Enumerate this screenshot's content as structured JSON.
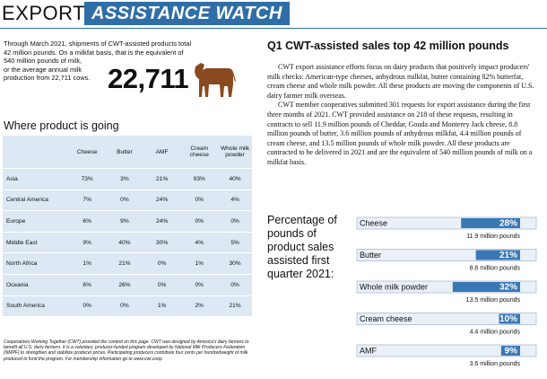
{
  "header": {
    "part1": "EXPORT",
    "part2": "ASSISTANCE WATCH"
  },
  "intro": {
    "lines": [
      "Through March 2021, shipments of CWT-assisted products total",
      "42 million pounds. On a milkfat basis, that is the equivalent of",
      "540 million pounds of milk,",
      "or the average annual milk",
      "production from 22,711 cows."
    ],
    "number": "22,711"
  },
  "table": {
    "title": "Where product is going",
    "columns": [
      "Cheese",
      "Butter",
      "AMF",
      "Cream cheese",
      "Whole milk powder"
    ],
    "rows": [
      {
        "region": "Asia",
        "cells": [
          "73%",
          "3%",
          "21%",
          "93%",
          "40%"
        ]
      },
      {
        "region": "Central America",
        "cells": [
          "7%",
          "0%",
          "24%",
          "0%",
          "4%"
        ]
      },
      {
        "region": "Europe",
        "cells": [
          "6%",
          "9%",
          "24%",
          "0%",
          "0%"
        ]
      },
      {
        "region": "Middle East",
        "cells": [
          "9%",
          "40%",
          "30%",
          "4%",
          "5%"
        ]
      },
      {
        "region": "North Africa",
        "cells": [
          "1%",
          "21%",
          "0%",
          "1%",
          "30%"
        ]
      },
      {
        "region": "Oceania",
        "cells": [
          "6%",
          "26%",
          "0%",
          "0%",
          "0%"
        ]
      },
      {
        "region": "South America",
        "cells": [
          "0%",
          "0%",
          "1%",
          "2%",
          "21%"
        ]
      }
    ]
  },
  "footnote": "Cooperatives Working Together (CWT) provided the content on this page. CWT was designed by America's dairy farmers to benefit all U.S. dairy farmers. It is a voluntary, producer-funded program developed by National Milk Producers Federation (NMPF) to strengthen and stabilize producer prices. Participating producers contribute four cents per hundredweight of milk produced to fund the program. For membership information go to www.cwt.coop",
  "article": {
    "headline": "Q1 CWT-assisted sales top 42 million pounds",
    "paragraphs": [
      "CWT export assistance efforts focus on dairy products that positively impact producers' milk checks: American-type cheeses, anhydrous milkfat, butter containing 82% butterfat, cream cheese and whole milk powder. All these products are moving the components of U.S. dairy farmer milk overseas.",
      "CWT member cooperatives submitted 301 requests for export assistance during the first three months of 2021. CWT provided assistance on 218 of these requests, resulting in contracts to sell 11.9 million pounds of Cheddar, Gouda and Monterey Jack cheese, 8.8 million pounds of butter, 3.6 million pounds of anhydrous milkfat, 4.4 million pounds of cream cheese, and 13.5 million pounds of whole milk powder. All these products are contracted to be delivered in 2021 and are the equivalent of 540 million pounds of milk on a milkfat basis."
    ]
  },
  "chart": {
    "title": "Percentage of pounds of product sales assisted first quarter 2021:",
    "color": "#3a78b5",
    "bars": [
      {
        "label": "Cheese",
        "value": 28,
        "value_label": "28%",
        "pounds": "11.9 million pounds"
      },
      {
        "label": "Butter",
        "value": 21,
        "value_label": "21%",
        "pounds": "8.8 million pounds"
      },
      {
        "label": "Whole milk powder",
        "value": 32,
        "value_label": "32%",
        "pounds": "13.5 million pounds"
      },
      {
        "label": "Cream cheese",
        "value": 10,
        "value_label": "10%",
        "pounds": "4.4 million pounds"
      },
      {
        "label": "AMF",
        "value": 9,
        "value_label": "9%",
        "pounds": "3.6 million pounds"
      }
    ]
  }
}
